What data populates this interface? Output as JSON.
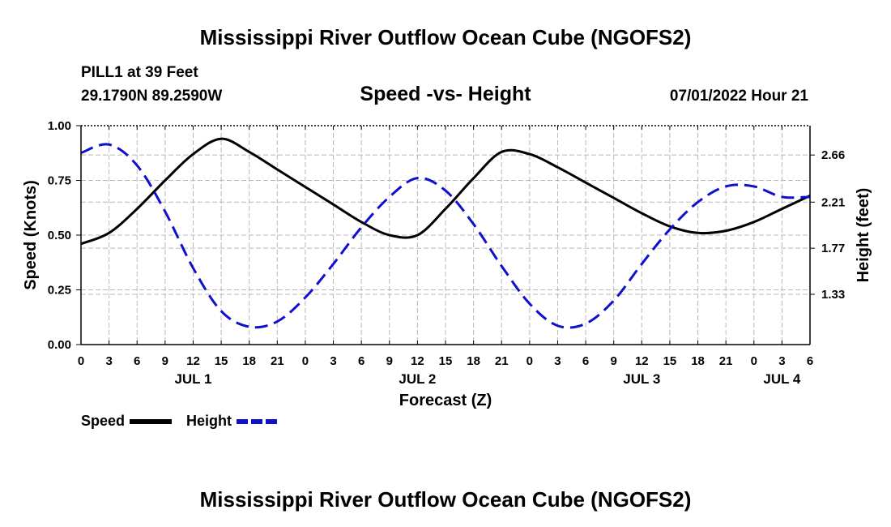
{
  "figure": {
    "title": "Mississippi River Outflow Ocean Cube (NGOFS2)",
    "station_label": "PILL1 at 39 Feet",
    "coordinates": "29.1790N  89.2590W",
    "subtitle": "Speed -vs- Height",
    "datetime": "07/01/2022 Hour 21",
    "bottom_title": "Mississippi River Outflow Ocean Cube (NGOFS2)"
  },
  "chart_data": {
    "type": "line",
    "title": "Speed -vs- Height",
    "xlabel": "Forecast (Z)",
    "ylabel": "Speed (Knots)",
    "y2label": "Height (feet)",
    "xlim": [
      0,
      78
    ],
    "ylim": [
      0,
      1.0
    ],
    "y2lim": [
      0.85,
      2.94
    ],
    "x_ticks": [
      0,
      3,
      6,
      9,
      12,
      15,
      18,
      21,
      24,
      27,
      30,
      33,
      36,
      39,
      42,
      45,
      48,
      51,
      54,
      57,
      60,
      63,
      66,
      69,
      72,
      75,
      78
    ],
    "x_tick_labels": [
      "0",
      "3",
      "6",
      "9",
      "12",
      "15",
      "18",
      "21",
      "0",
      "3",
      "6",
      "9",
      "12",
      "15",
      "18",
      "21",
      "0",
      "3",
      "6",
      "9",
      "12",
      "15",
      "18",
      "21",
      "0",
      "3",
      "6"
    ],
    "day_labels": [
      {
        "x": 12,
        "label": "JUL 1"
      },
      {
        "x": 36,
        "label": "JUL 2"
      },
      {
        "x": 60,
        "label": "JUL 3"
      },
      {
        "x": 75,
        "label": "JUL 4"
      }
    ],
    "y_ticks": [
      0.0,
      0.25,
      0.5,
      0.75,
      1.0
    ],
    "y_tick_labels": [
      "0.00",
      "0.25",
      "0.50",
      "0.75",
      "1.00"
    ],
    "y2_ticks": [
      1.33,
      1.77,
      2.21,
      2.66
    ],
    "y2_tick_labels": [
      "1.33",
      "1.77",
      "2.21",
      "2.66"
    ],
    "grid": true,
    "legend_position": "bottom-left",
    "series": [
      {
        "name": "Speed",
        "axis": "left",
        "color": "#000000",
        "dash": "solid",
        "x": [
          0,
          3,
          6,
          9,
          12,
          15,
          18,
          21,
          24,
          27,
          30,
          33,
          36,
          39,
          42,
          45,
          48,
          51,
          54,
          57,
          60,
          63,
          66,
          69,
          72,
          75,
          78
        ],
        "y": [
          0.46,
          0.51,
          0.62,
          0.75,
          0.87,
          0.94,
          0.88,
          0.8,
          0.72,
          0.64,
          0.56,
          0.5,
          0.5,
          0.62,
          0.76,
          0.88,
          0.87,
          0.81,
          0.74,
          0.67,
          0.6,
          0.54,
          0.51,
          0.52,
          0.56,
          0.62,
          0.68
        ]
      },
      {
        "name": "Height",
        "axis": "right",
        "color": "#1010cc",
        "dash": "dashed",
        "x": [
          0,
          3,
          6,
          9,
          12,
          15,
          18,
          21,
          24,
          27,
          30,
          33,
          36,
          39,
          42,
          45,
          48,
          51,
          54,
          57,
          60,
          63,
          66,
          69,
          72,
          75,
          78
        ],
        "y": [
          2.68,
          2.76,
          2.56,
          2.12,
          1.58,
          1.17,
          1.02,
          1.07,
          1.3,
          1.62,
          1.97,
          2.26,
          2.44,
          2.32,
          2.0,
          1.6,
          1.24,
          1.03,
          1.05,
          1.27,
          1.62,
          1.95,
          2.21,
          2.36,
          2.36,
          2.26,
          2.26
        ]
      }
    ],
    "legend": [
      {
        "label": "Speed",
        "color": "#000000",
        "dash": "solid"
      },
      {
        "label": "Height",
        "color": "#1010cc",
        "dash": "dashed"
      }
    ]
  }
}
